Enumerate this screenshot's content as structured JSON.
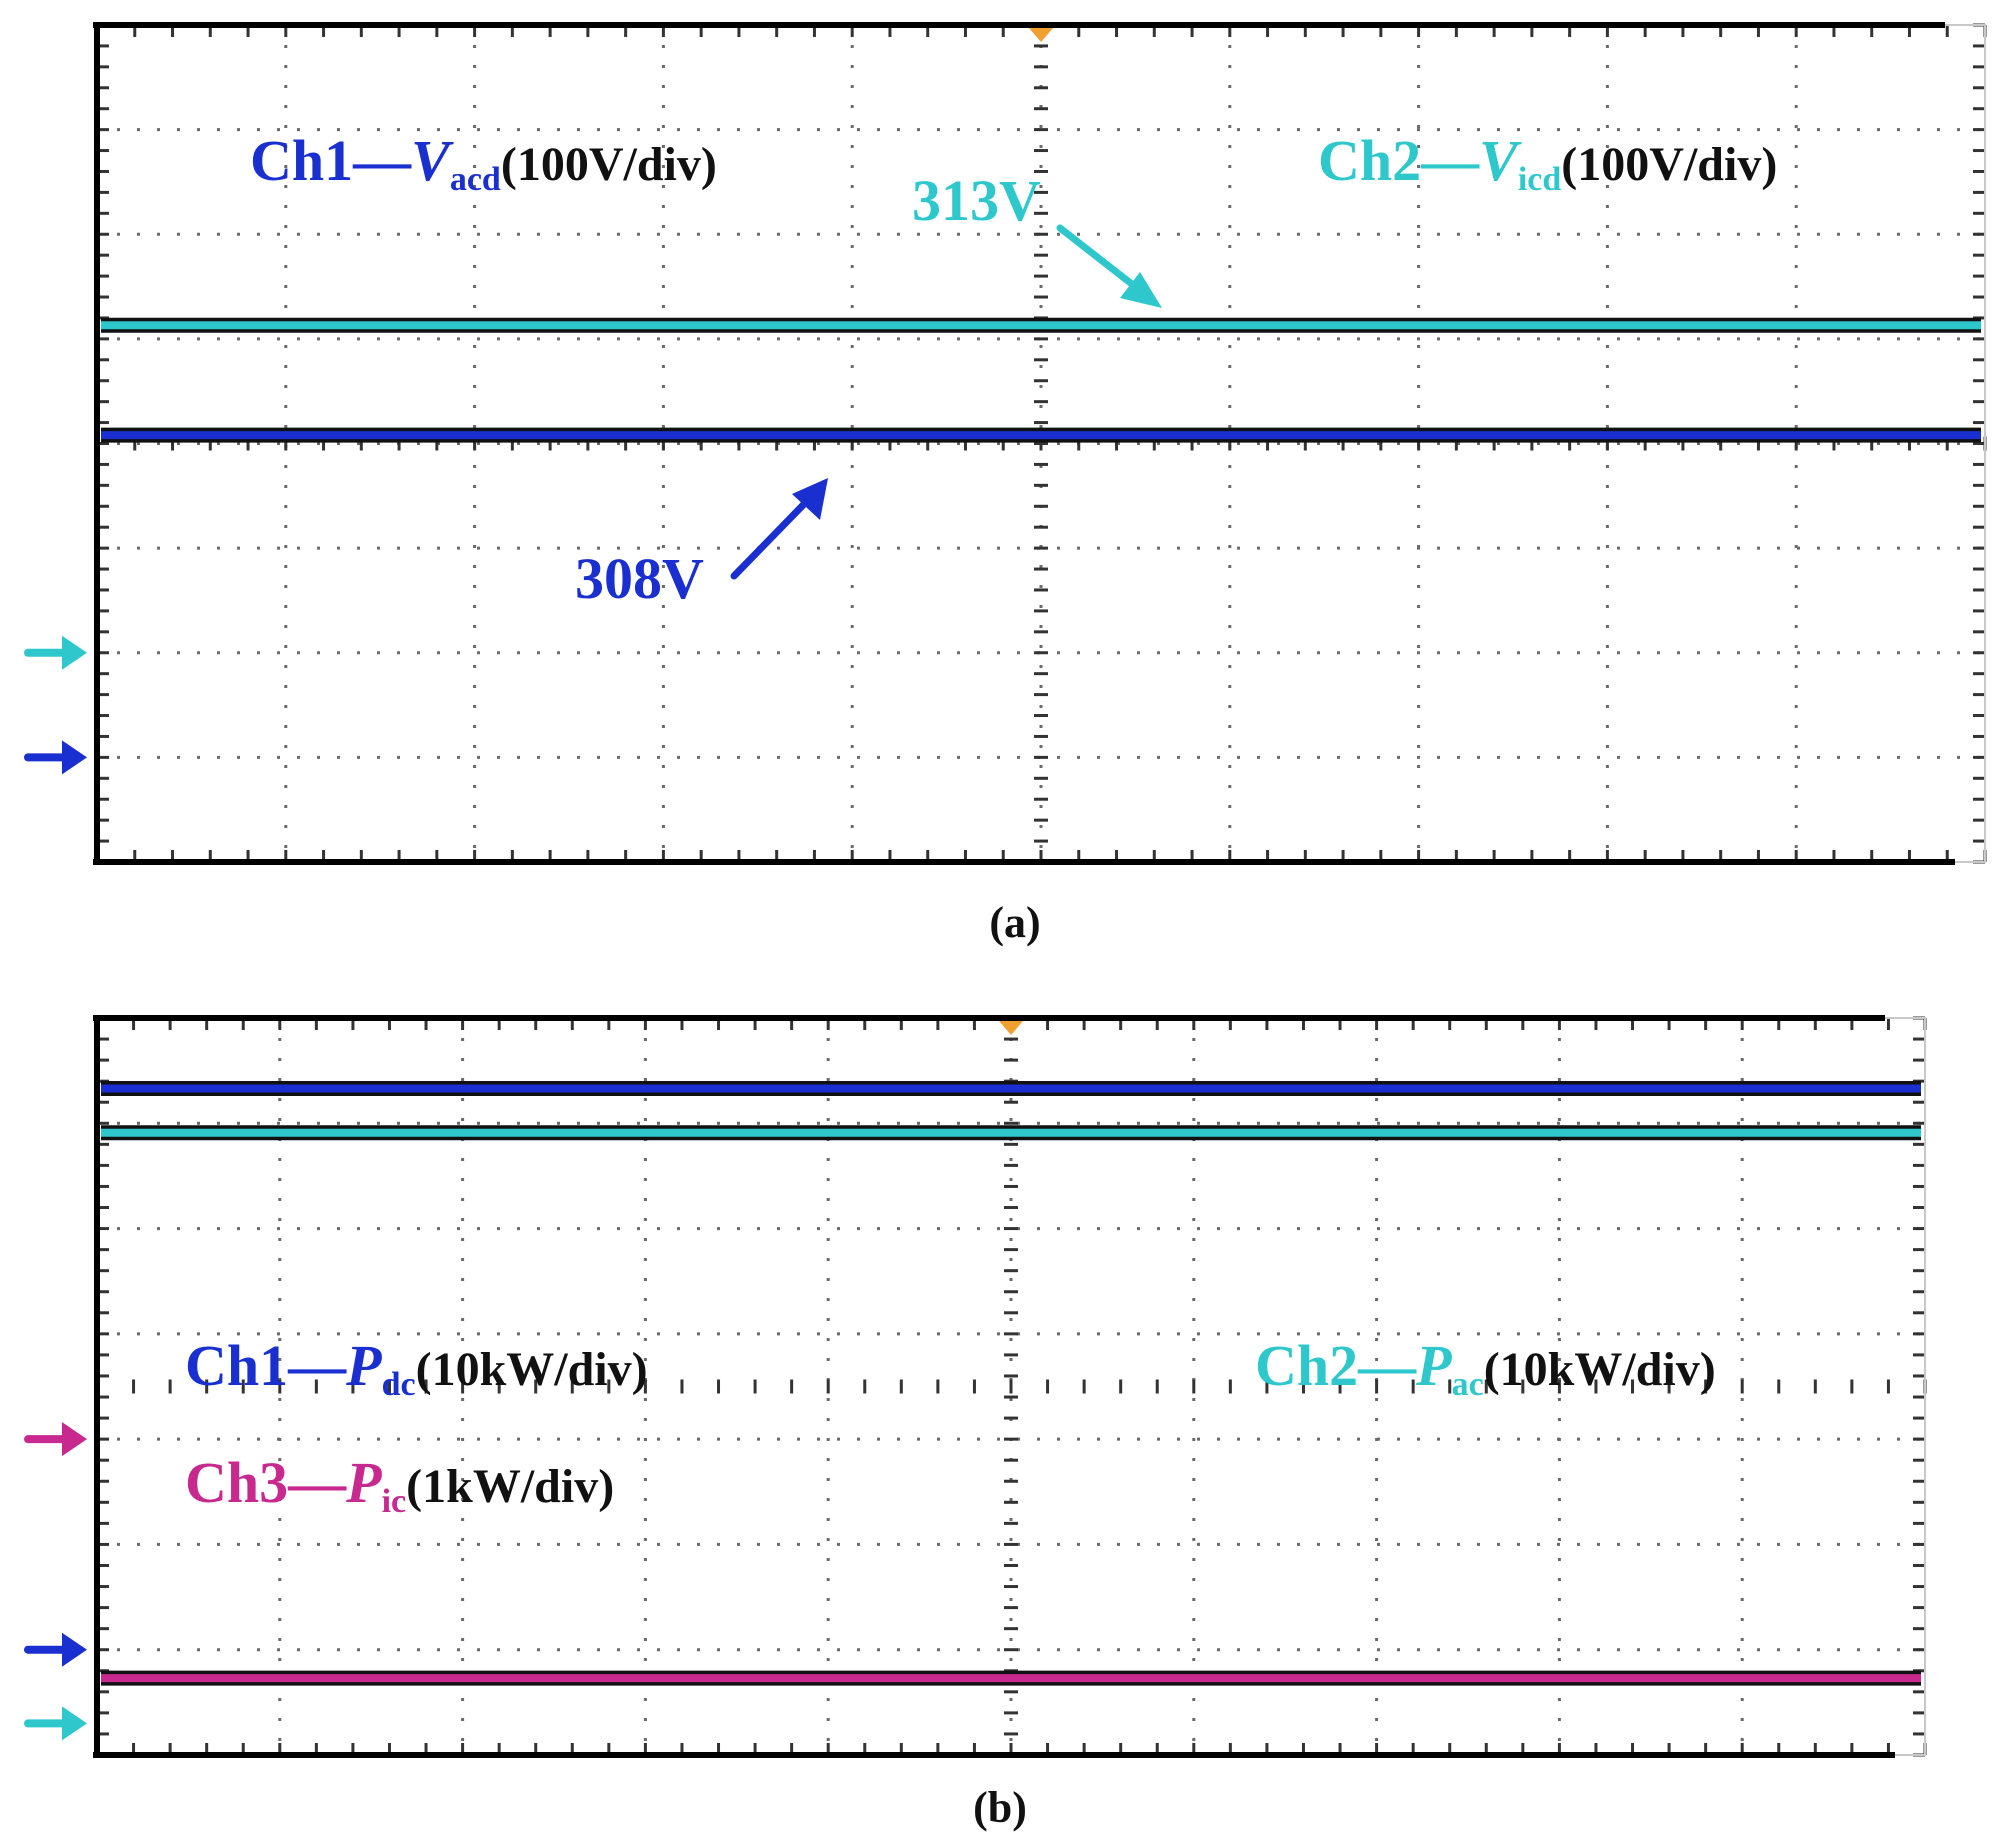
{
  "colors": {
    "ch1": "#1a2fd0",
    "ch2": "#2ec8cc",
    "ch3": "#c8298e",
    "trigger": "#f0a030",
    "text": "#111111"
  },
  "chart_data": [
    {
      "type": "line",
      "caption": "(a)",
      "grid": true,
      "divisions": {
        "x": 10,
        "y": 8
      },
      "x": [
        0,
        10
      ],
      "trigger_x_div": 5,
      "series": [
        {
          "name": "Ch1",
          "values": [
            4.08,
            4.08
          ],
          "color": "#1a2fd0",
          "marker_div": 1.0
        },
        {
          "name": "Ch2",
          "values": [
            5.13,
            5.13
          ],
          "color": "#2ec8cc",
          "marker_div": 2.0
        }
      ],
      "legend": [
        {
          "channel": "Ch1",
          "dash": "—",
          "symbol": "V",
          "subscript": "acd",
          "scale": "(100V/div)",
          "color": "#1a2fd0",
          "placement": "top-left"
        },
        {
          "channel": "Ch2",
          "dash": "—",
          "symbol": "V",
          "subscript": "icd",
          "scale": "(100V/div)",
          "color": "#2ec8cc",
          "placement": "top-right"
        }
      ],
      "annotations": [
        {
          "text": "313V",
          "color": "#2ec8cc",
          "points_to": "Ch2",
          "at_x_div": 5.8
        },
        {
          "text": "308V",
          "color": "#1a2fd0",
          "points_to": "Ch1",
          "at_x_div": 3.9
        }
      ]
    },
    {
      "type": "line",
      "caption": "(b)",
      "grid": true,
      "divisions": {
        "x": 10,
        "y": 7
      },
      "x": [
        0,
        10
      ],
      "trigger_x_div": 5,
      "series": [
        {
          "name": "Ch1",
          "values": [
            6.33,
            6.33
          ],
          "color": "#1a2fd0",
          "marker_div": 1.0
        },
        {
          "name": "Ch2",
          "values": [
            5.91,
            5.91
          ],
          "color": "#2ec8cc",
          "marker_div": 0.3
        },
        {
          "name": "Ch3",
          "values": [
            0.73,
            0.73
          ],
          "color": "#c8298e",
          "marker_div": 3.0
        }
      ],
      "legend": [
        {
          "channel": "Ch1",
          "dash": "—",
          "symbol": "P",
          "subscript": "dc",
          "scale": "(10kW/div)",
          "color": "#1a2fd0",
          "placement": "middle-left"
        },
        {
          "channel": "Ch2",
          "dash": "—",
          "symbol": "P",
          "subscript": "ac",
          "scale": "(10kW/div)",
          "color": "#2ec8cc",
          "placement": "middle-right"
        },
        {
          "channel": "Ch3",
          "dash": "—",
          "symbol": "P",
          "subscript": "ic",
          "scale": "(1kW/div)",
          "color": "#c8298e",
          "placement": "middle-left"
        }
      ]
    }
  ]
}
